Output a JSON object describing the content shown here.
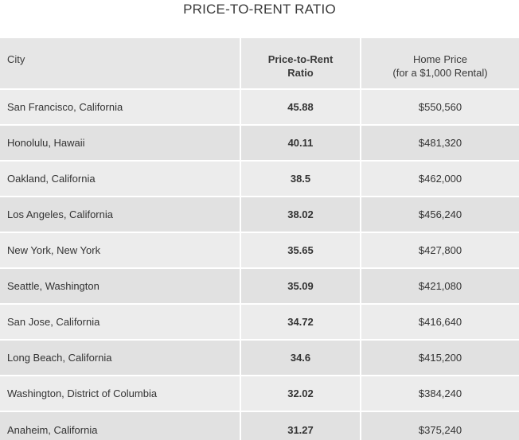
{
  "chart_data": {
    "type": "table",
    "title": "PRICE-TO-RENT RATIO",
    "columns": [
      "City",
      "Price-to-Rent Ratio",
      "Home Price (for a $1,000 Rental)"
    ],
    "header": {
      "city": "City",
      "ratio_line1": "Price-to-Rent",
      "ratio_line2": "Ratio",
      "price_line1": "Home Price",
      "price_line2": "(for a $1,000 Rental)"
    },
    "rows": [
      {
        "city": "San Francisco, California",
        "ratio": "45.88",
        "price": "$550,560"
      },
      {
        "city": "Honolulu, Hawaii",
        "ratio": "40.11",
        "price": "$481,320"
      },
      {
        "city": "Oakland, California",
        "ratio": "38.5",
        "price": "$462,000"
      },
      {
        "city": "Los Angeles, California",
        "ratio": "38.02",
        "price": "$456,240"
      },
      {
        "city": "New York, New York",
        "ratio": "35.65",
        "price": "$427,800"
      },
      {
        "city": "Seattle, Washington",
        "ratio": "35.09",
        "price": "$421,080"
      },
      {
        "city": "San Jose, California",
        "ratio": "34.72",
        "price": "$416,640"
      },
      {
        "city": "Long Beach, California",
        "ratio": "34.6",
        "price": "$415,200"
      },
      {
        "city": "Washington, District of Columbia",
        "ratio": "32.02",
        "price": "$384,240"
      },
      {
        "city": "Anaheim, California",
        "ratio": "31.27",
        "price": "$375,240"
      }
    ]
  }
}
